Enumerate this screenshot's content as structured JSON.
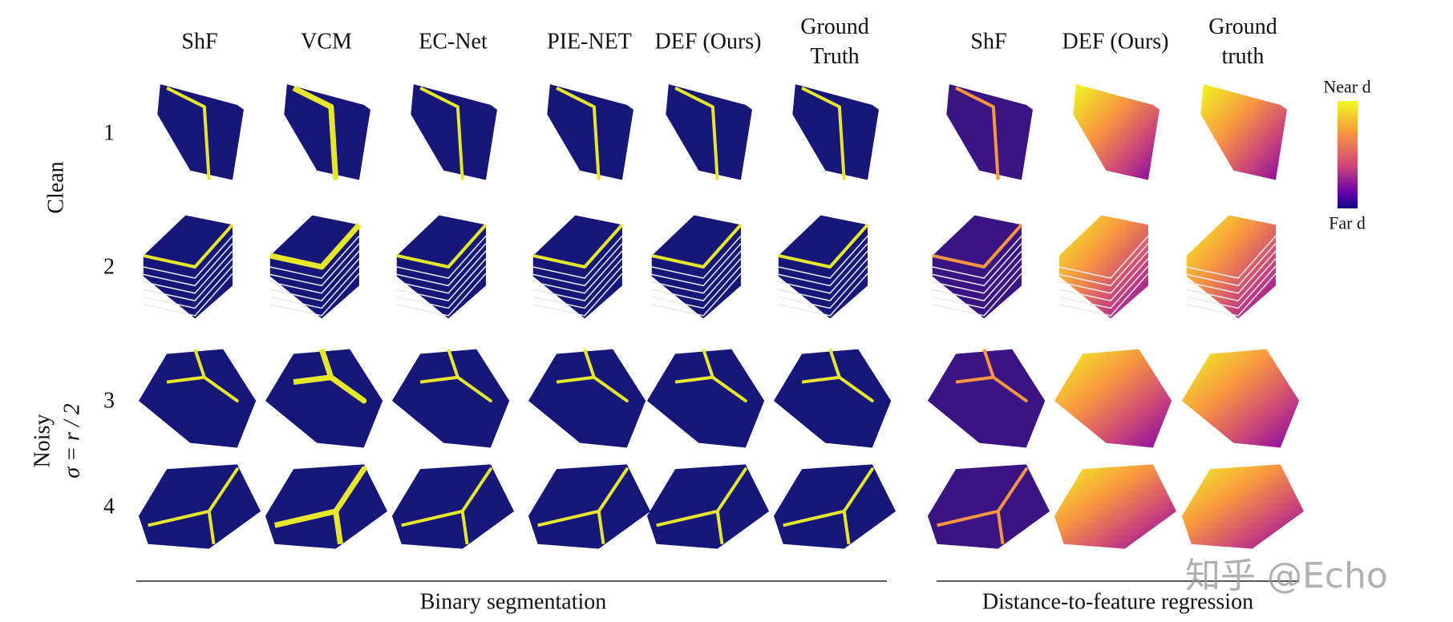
{
  "segmentation_headers": [
    "ShF",
    "VCM",
    "EC-Net",
    "PIE-NET",
    "DEF (Ours)",
    "Ground Truth"
  ],
  "regression_headers": [
    "ShF",
    "DEF (Ours)",
    "Ground truth"
  ],
  "row_numbers": [
    "1",
    "2",
    "3",
    "4"
  ],
  "row_groups": {
    "clean": "Clean",
    "noisy": "Noisy",
    "noise_level": "σ = r / 2"
  },
  "group_labels": {
    "segmentation": "Binary segmentation",
    "regression": "Distance-to-feature regression"
  },
  "colorbar": {
    "top": "Near d",
    "bottom": "Far d"
  },
  "watermark": "知乎 @Echo"
}
